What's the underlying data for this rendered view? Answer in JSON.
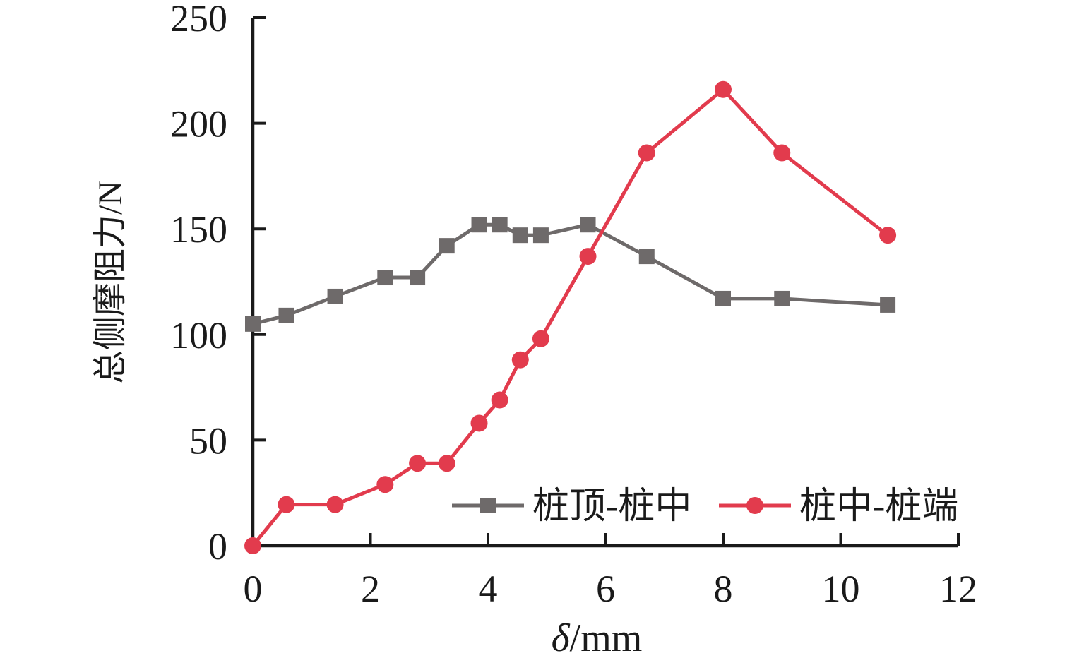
{
  "figure": {
    "background": "#ffffff",
    "axis_color": "#1a1a1a",
    "text_color": "#1a1a1a"
  },
  "chart_data": {
    "type": "line",
    "title": "",
    "xlabel_symbol": "δ",
    "xlabel_unit": "/mm",
    "ylabel": "总侧摩阻力/N",
    "xlim": [
      0,
      12
    ],
    "ylim": [
      0,
      250
    ],
    "x_ticks": [
      0,
      2,
      4,
      6,
      8,
      10,
      12
    ],
    "y_ticks": [
      0,
      50,
      100,
      150,
      200,
      250
    ],
    "grid": false,
    "legend_position": "inside-bottom-right",
    "x": [
      0,
      0.57,
      1.4,
      2.25,
      2.8,
      3.3,
      3.85,
      4.2,
      4.55,
      4.9,
      5.7,
      6.7,
      8,
      9,
      10.8
    ],
    "series": [
      {
        "name": "桩顶-桩中",
        "marker": "square",
        "color": "#6e6a6a",
        "values": [
          105,
          109,
          118,
          127,
          127,
          142,
          152,
          152,
          147,
          147,
          152,
          137,
          117,
          117,
          114
        ]
      },
      {
        "name": "桩中-桩端",
        "marker": "circle",
        "color": "#e23b4d",
        "values": [
          0,
          19.5,
          19.5,
          29,
          39,
          39,
          58,
          69,
          88,
          98,
          137,
          186,
          216,
          186,
          147
        ]
      }
    ]
  },
  "legend": {
    "items": [
      {
        "label": "桩顶-桩中"
      },
      {
        "label": "桩中-桩端"
      }
    ]
  }
}
